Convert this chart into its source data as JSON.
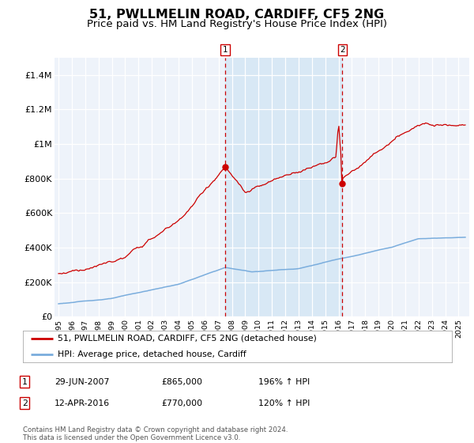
{
  "title": "51, PWLLMELIN ROAD, CARDIFF, CF5 2NG",
  "subtitle": "Price paid vs. HM Land Registry's House Price Index (HPI)",
  "title_fontsize": 11.5,
  "subtitle_fontsize": 9.5,
  "ylabel_ticks": [
    "£0",
    "£200K",
    "£400K",
    "£600K",
    "£800K",
    "£1M",
    "£1.2M",
    "£1.4M"
  ],
  "ylabel_values": [
    0,
    200000,
    400000,
    600000,
    800000,
    1000000,
    1200000,
    1400000
  ],
  "ylim": [
    0,
    1500000
  ],
  "xlim_start": 1994.7,
  "xlim_end": 2025.8,
  "xticks": [
    1995,
    1996,
    1997,
    1998,
    1999,
    2000,
    2001,
    2002,
    2003,
    2004,
    2005,
    2006,
    2007,
    2008,
    2009,
    2010,
    2011,
    2012,
    2013,
    2014,
    2015,
    2016,
    2017,
    2018,
    2019,
    2020,
    2021,
    2022,
    2023,
    2024,
    2025
  ],
  "house_color": "#cc0000",
  "hpi_color": "#7aaddd",
  "marker1_date": 2007.49,
  "marker1_price": 865000,
  "marker2_date": 2016.28,
  "marker2_price": 770000,
  "legend_house": "51, PWLLMELIN ROAD, CARDIFF, CF5 2NG (detached house)",
  "legend_hpi": "HPI: Average price, detached house, Cardiff",
  "sale1_label": "1",
  "sale1_date": "29-JUN-2007",
  "sale1_price": "£865,000",
  "sale1_hpi": "196% ↑ HPI",
  "sale2_label": "2",
  "sale2_date": "12-APR-2016",
  "sale2_price": "£770,000",
  "sale2_hpi": "120% ↑ HPI",
  "footer": "Contains HM Land Registry data © Crown copyright and database right 2024.\nThis data is licensed under the Open Government Licence v3.0.",
  "background_color": "#ffffff",
  "plot_bg_color": "#eef3fa",
  "grid_color": "#ffffff",
  "shaded_region_color": "#d8e8f5"
}
